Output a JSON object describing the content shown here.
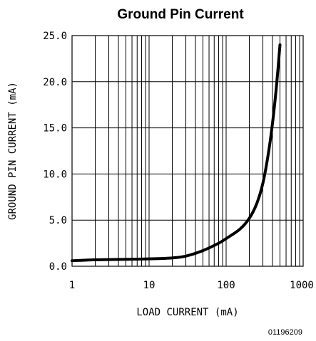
{
  "chart_data": {
    "type": "line",
    "title": "Ground Pin Current",
    "xlabel": "LOAD CURRENT (mA)",
    "ylabel": "GROUND PIN CURRENT (mA)",
    "x_scale": "log",
    "xlim": [
      1,
      1000
    ],
    "ylim": [
      0,
      25
    ],
    "grid": true,
    "x_ticks": [
      1,
      10,
      100,
      1000
    ],
    "x_tick_labels": [
      "1",
      "10",
      "100",
      "1000"
    ],
    "y_ticks": [
      0,
      5,
      10,
      15,
      20,
      25
    ],
    "y_tick_labels": [
      "0.0",
      "5.0",
      "10.0",
      "15.0",
      "20.0",
      "25.0"
    ],
    "series": [
      {
        "x": [
          1,
          2,
          5,
          10,
          20,
          30,
          50,
          80,
          100,
          150,
          200,
          250,
          300,
          350,
          400,
          450,
          500
        ],
        "y": [
          0.6,
          0.7,
          0.75,
          0.8,
          0.9,
          1.1,
          1.7,
          2.5,
          3.0,
          4.0,
          5.2,
          6.8,
          9.0,
          12.0,
          15.5,
          19.5,
          24.0
        ]
      }
    ],
    "figure_id": "01196209"
  }
}
